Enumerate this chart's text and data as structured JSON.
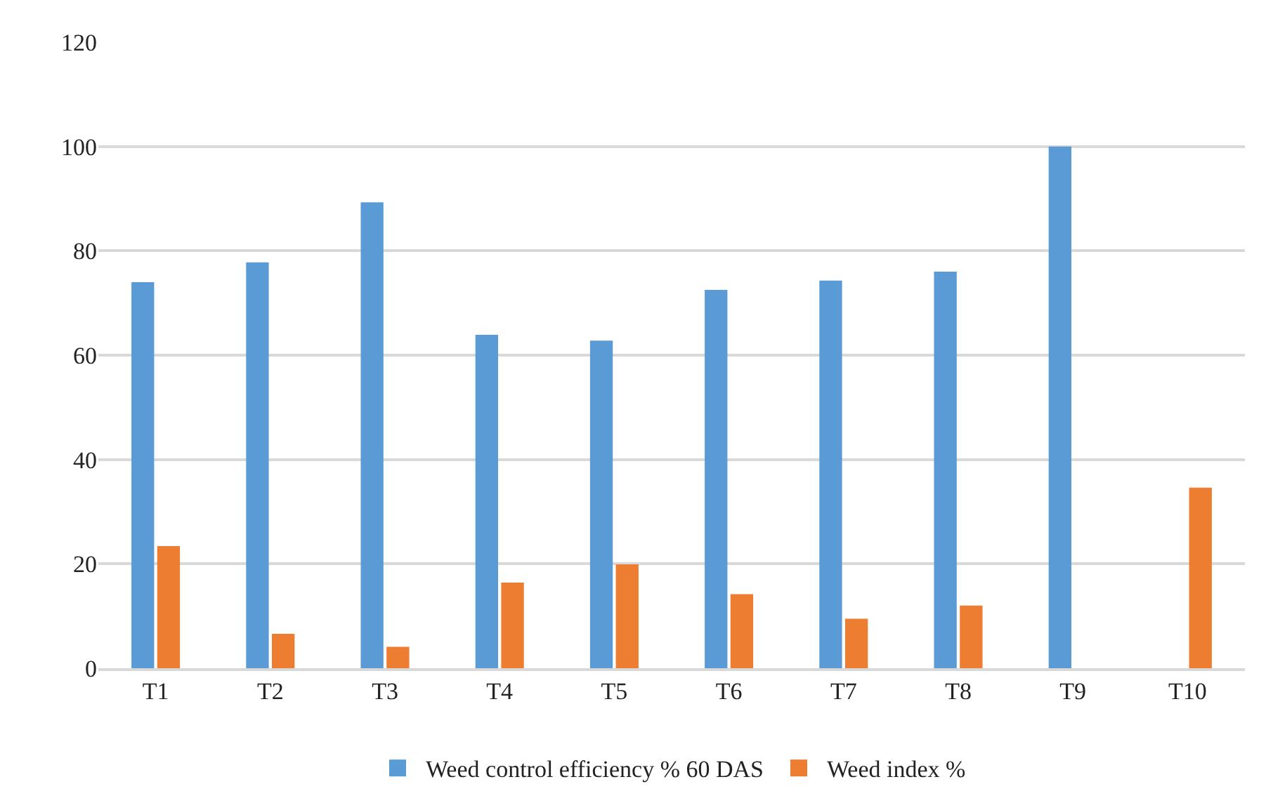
{
  "chart_data": {
    "type": "bar",
    "categories": [
      "T1",
      "T2",
      "T3",
      "T4",
      "T5",
      "T6",
      "T7",
      "T8",
      "T9",
      "T10"
    ],
    "series": [
      {
        "name": "Weed control efficiency % 60 DAS",
        "color": "#5b9bd5",
        "values": [
          74,
          77.8,
          89.3,
          63.9,
          62.8,
          72.5,
          74.3,
          76,
          100,
          0
        ]
      },
      {
        "name": "Weed index %",
        "color": "#ed7d31",
        "values": [
          23.4,
          6.6,
          4.1,
          16.4,
          19.9,
          14.2,
          9.5,
          12,
          0,
          34.6
        ]
      }
    ],
    "ylim": [
      0,
      120
    ],
    "yticks": [
      0,
      20,
      40,
      60,
      80,
      100,
      120
    ],
    "grid": "y",
    "legend": "bottom"
  }
}
